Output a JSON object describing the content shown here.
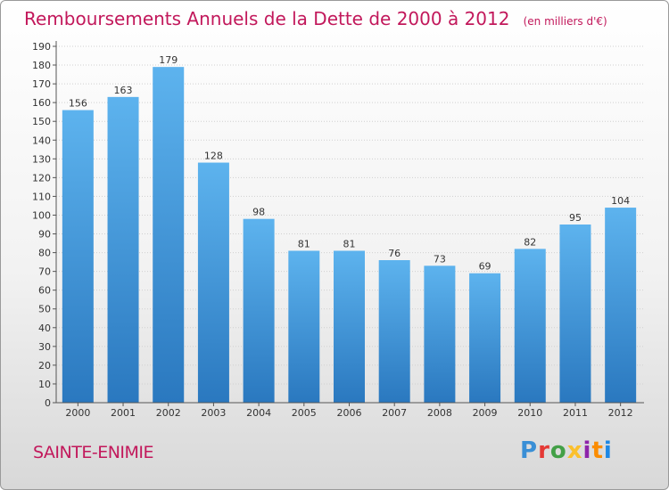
{
  "chart_data": {
    "type": "bar",
    "title": "Remboursements Annuels de la Dette de 2000 à 2012",
    "subtitle": "(en milliers d'€)",
    "categories": [
      "2000",
      "2001",
      "2002",
      "2003",
      "2004",
      "2005",
      "2006",
      "2007",
      "2008",
      "2009",
      "2010",
      "2011",
      "2012"
    ],
    "values": [
      156,
      163,
      179,
      128,
      98,
      81,
      81,
      76,
      73,
      69,
      82,
      95,
      104
    ],
    "ylim": [
      0,
      190
    ],
    "ytick_step": 10,
    "grid": true,
    "bar_color": "#3a8fd6"
  },
  "footer": {
    "place": "SAINTE-ENIMIE",
    "logo": "Proxiti",
    "logo_colors": [
      "#3a8fd6",
      "#e53935",
      "#43a047",
      "#fbc02d",
      "#8e24aa",
      "#fb8c00",
      "#1e88e5"
    ]
  },
  "colors": {
    "accent": "#c2185b"
  }
}
